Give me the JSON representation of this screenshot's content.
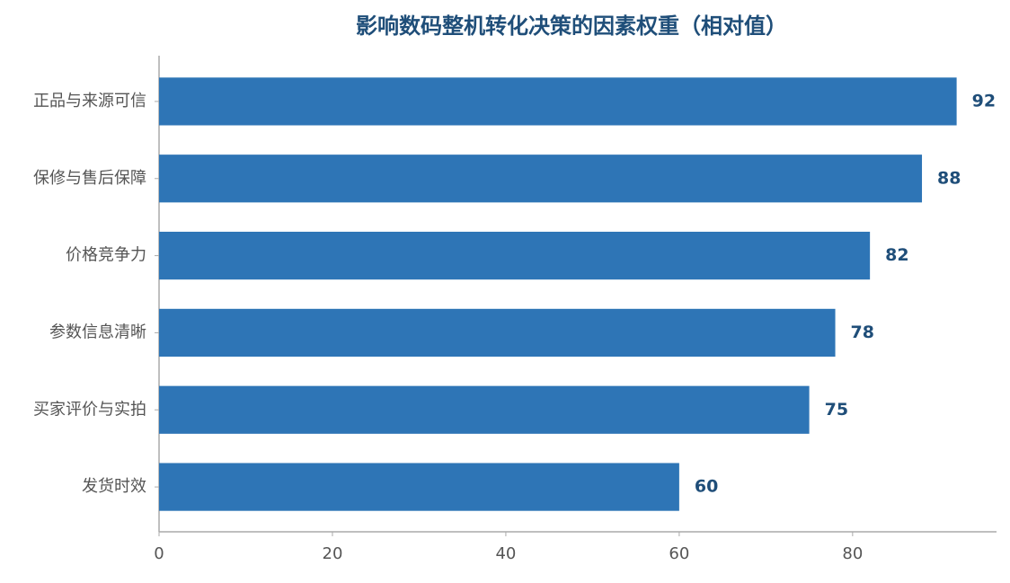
{
  "chart_data": {
    "type": "barh",
    "title": "影响数码整机转化决策的因素权重（相对值）",
    "categories": [
      "正品与来源可信",
      "保修与售后保障",
      "价格竞争力",
      "参数信息清晰",
      "买家评价与实拍",
      "发货时效"
    ],
    "values": [
      92,
      88,
      82,
      78,
      75,
      60
    ],
    "color": "#2e75b6",
    "label_color": "#1f4e79",
    "xlim": [
      0,
      96.6
    ],
    "xticks": [
      0,
      20,
      40,
      60,
      80
    ]
  }
}
